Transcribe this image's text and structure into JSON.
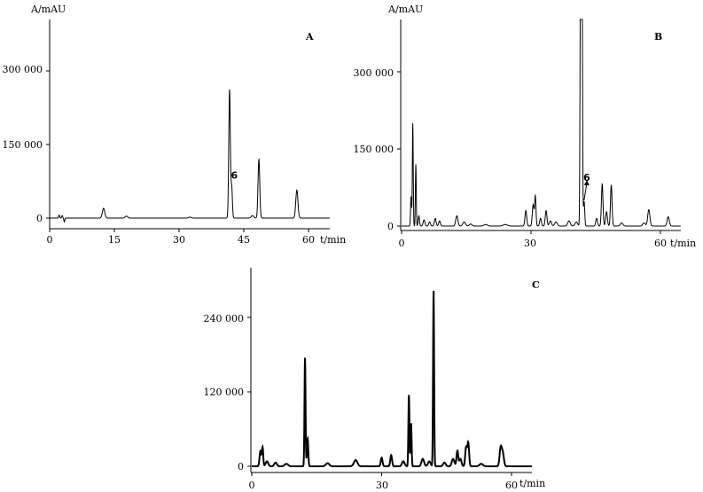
{
  "chart_data": [
    {
      "type": "line",
      "panel_label": "A",
      "ylabel": "A/mAU",
      "xlabel": "t/min",
      "xlim": [
        0,
        65
      ],
      "ylim": [
        -20000,
        420000
      ],
      "x_ticks": [
        0,
        15,
        30,
        45,
        60
      ],
      "x_tick_labels": [
        "0",
        "15",
        "30",
        "45",
        "60"
      ],
      "y_ticks": [
        0,
        150000,
        300000
      ],
      "y_tick_labels": [
        "0",
        "150 000",
        "300 000"
      ],
      "line_width": 1,
      "peak_annotations": [
        {
          "label": "6",
          "x": 42.2,
          "y": 80000,
          "arrow": false
        }
      ],
      "series": [
        {
          "baseline": 0,
          "peaks": [
            [
              2.2,
              6000,
              0.12
            ],
            [
              2.9,
              5000,
              0.12
            ],
            [
              3.4,
              -8000,
              0.1
            ],
            [
              12.5,
              20000,
              0.28
            ],
            [
              17.8,
              4000,
              0.3
            ],
            [
              32.5,
              2000,
              0.3
            ],
            [
              41.7,
              262000,
              0.18
            ],
            [
              42.2,
              62000,
              0.16
            ],
            [
              47.0,
              5000,
              0.3
            ],
            [
              48.5,
              120000,
              0.2
            ],
            [
              57.3,
              57000,
              0.25
            ]
          ]
        }
      ]
    },
    {
      "type": "line",
      "panel_label": "B",
      "ylabel": "A/mAU",
      "xlabel": "t/min",
      "xlim": [
        0,
        66
      ],
      "ylim": [
        -10000,
        420000
      ],
      "x_ticks": [
        0,
        30,
        60
      ],
      "x_tick_labels": [
        "0",
        "30",
        "60"
      ],
      "y_ticks": [
        0,
        150000,
        300000
      ],
      "y_tick_labels": [
        "0",
        "150 000",
        "300 000"
      ],
      "line_width": 1,
      "peak_annotations": [
        {
          "label": "6",
          "x": 42.3,
          "y": 88000,
          "arrow": true,
          "arrow_to": [
            42.3,
            50000
          ]
        }
      ],
      "series": [
        {
          "baseline": 0,
          "peaks": [
            [
              2.2,
              58000,
              0.12
            ],
            [
              2.6,
              200000,
              0.1
            ],
            [
              3.3,
              120000,
              0.1
            ],
            [
              4.0,
              20000,
              0.15
            ],
            [
              5.2,
              12000,
              0.2
            ],
            [
              6.5,
              8000,
              0.2
            ],
            [
              7.8,
              15000,
              0.2
            ],
            [
              8.8,
              10000,
              0.2
            ],
            [
              12.8,
              20000,
              0.25
            ],
            [
              14.5,
              8000,
              0.3
            ],
            [
              16.0,
              4000,
              0.3
            ],
            [
              19.5,
              3000,
              0.4
            ],
            [
              24.0,
              3000,
              0.5
            ],
            [
              28.8,
              30000,
              0.2
            ],
            [
              30.5,
              42000,
              0.2
            ],
            [
              31.0,
              58000,
              0.15
            ],
            [
              32.2,
              15000,
              0.2
            ],
            [
              33.5,
              30000,
              0.2
            ],
            [
              34.5,
              10000,
              0.25
            ],
            [
              35.8,
              8000,
              0.3
            ],
            [
              38.8,
              10000,
              0.3
            ],
            [
              40.5,
              8000,
              0.3
            ],
            [
              41.5,
              620000,
              0.12
            ],
            [
              41.8,
              620000,
              0.12
            ],
            [
              42.3,
              48000,
              0.15
            ],
            [
              45.2,
              15000,
              0.2
            ],
            [
              46.5,
              82000,
              0.18
            ],
            [
              47.5,
              28000,
              0.2
            ],
            [
              48.6,
              80000,
              0.18
            ],
            [
              51.0,
              6000,
              0.3
            ],
            [
              56.2,
              6000,
              0.3
            ],
            [
              57.3,
              32000,
              0.25
            ],
            [
              61.8,
              18000,
              0.25
            ]
          ]
        }
      ]
    },
    {
      "type": "line",
      "panel_label": "C",
      "ylabel": "",
      "xlabel": "t/min",
      "xlim": [
        0,
        66
      ],
      "ylim": [
        -10000,
        330000
      ],
      "x_ticks": [
        0,
        30,
        60
      ],
      "x_tick_labels": [
        "0",
        "30",
        "60"
      ],
      "y_ticks": [
        0,
        120000,
        240000
      ],
      "y_tick_labels": [
        "0",
        "120 000",
        "240 000"
      ],
      "line_width": 2,
      "peak_annotations": [],
      "series": [
        {
          "baseline": 0,
          "peaks": [
            [
              2.0,
              25000,
              0.2
            ],
            [
              2.5,
              30000,
              0.15
            ],
            [
              3.5,
              8000,
              0.3
            ],
            [
              5.5,
              6000,
              0.3
            ],
            [
              8.0,
              4000,
              0.4
            ],
            [
              12.3,
              175000,
              0.12
            ],
            [
              12.9,
              45000,
              0.15
            ],
            [
              17.5,
              5000,
              0.4
            ],
            [
              24.0,
              10000,
              0.4
            ],
            [
              30.0,
              14000,
              0.2
            ],
            [
              32.2,
              18000,
              0.2
            ],
            [
              35.0,
              8000,
              0.3
            ],
            [
              36.3,
              115000,
              0.12
            ],
            [
              36.8,
              70000,
              0.12
            ],
            [
              39.5,
              12000,
              0.3
            ],
            [
              41.0,
              8000,
              0.3
            ],
            [
              42.0,
              283000,
              0.12
            ],
            [
              44.5,
              6000,
              0.3
            ],
            [
              46.5,
              12000,
              0.3
            ],
            [
              47.5,
              25000,
              0.2
            ],
            [
              48.2,
              12000,
              0.25
            ],
            [
              49.5,
              30000,
              0.2
            ],
            [
              50.0,
              38000,
              0.2
            ],
            [
              53.0,
              4000,
              0.4
            ],
            [
              57.5,
              30000,
              0.25
            ],
            [
              58.0,
              20000,
              0.25
            ]
          ]
        }
      ]
    }
  ]
}
